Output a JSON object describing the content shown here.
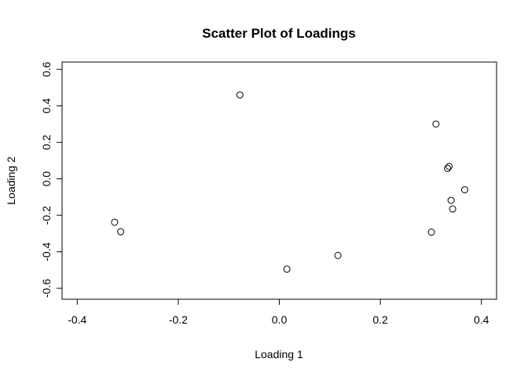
{
  "chart_data": {
    "type": "scatter",
    "title": "Scatter Plot of Loadings",
    "xlabel": "Loading 1",
    "ylabel": "Loading 2",
    "xlim": [
      -0.43,
      0.43
    ],
    "ylim": [
      -0.66,
      0.64
    ],
    "xticks": [
      -0.4,
      -0.2,
      0.0,
      0.2,
      0.4
    ],
    "xtick_labels": [
      "-0.4",
      "-0.2",
      "0.0",
      "0.2",
      "0.4"
    ],
    "yticks": [
      -0.6,
      -0.4,
      -0.2,
      0.0,
      0.2,
      0.4,
      0.6
    ],
    "ytick_labels": [
      "-0.6",
      "-0.4",
      "-0.2",
      "0.0",
      "0.2",
      "0.4",
      "0.6"
    ],
    "grid": false,
    "marker": "open-circle",
    "color": "#000000",
    "points": [
      {
        "x": -0.078,
        "y": 0.46
      },
      {
        "x": 0.31,
        "y": 0.3
      },
      {
        "x": 0.336,
        "y": 0.068
      },
      {
        "x": 0.333,
        "y": 0.057
      },
      {
        "x": 0.367,
        "y": -0.06
      },
      {
        "x": 0.34,
        "y": -0.118
      },
      {
        "x": 0.343,
        "y": -0.165
      },
      {
        "x": -0.326,
        "y": -0.238
      },
      {
        "x": -0.314,
        "y": -0.29
      },
      {
        "x": 0.301,
        "y": -0.292
      },
      {
        "x": 0.116,
        "y": -0.42
      },
      {
        "x": 0.015,
        "y": -0.495
      }
    ]
  }
}
